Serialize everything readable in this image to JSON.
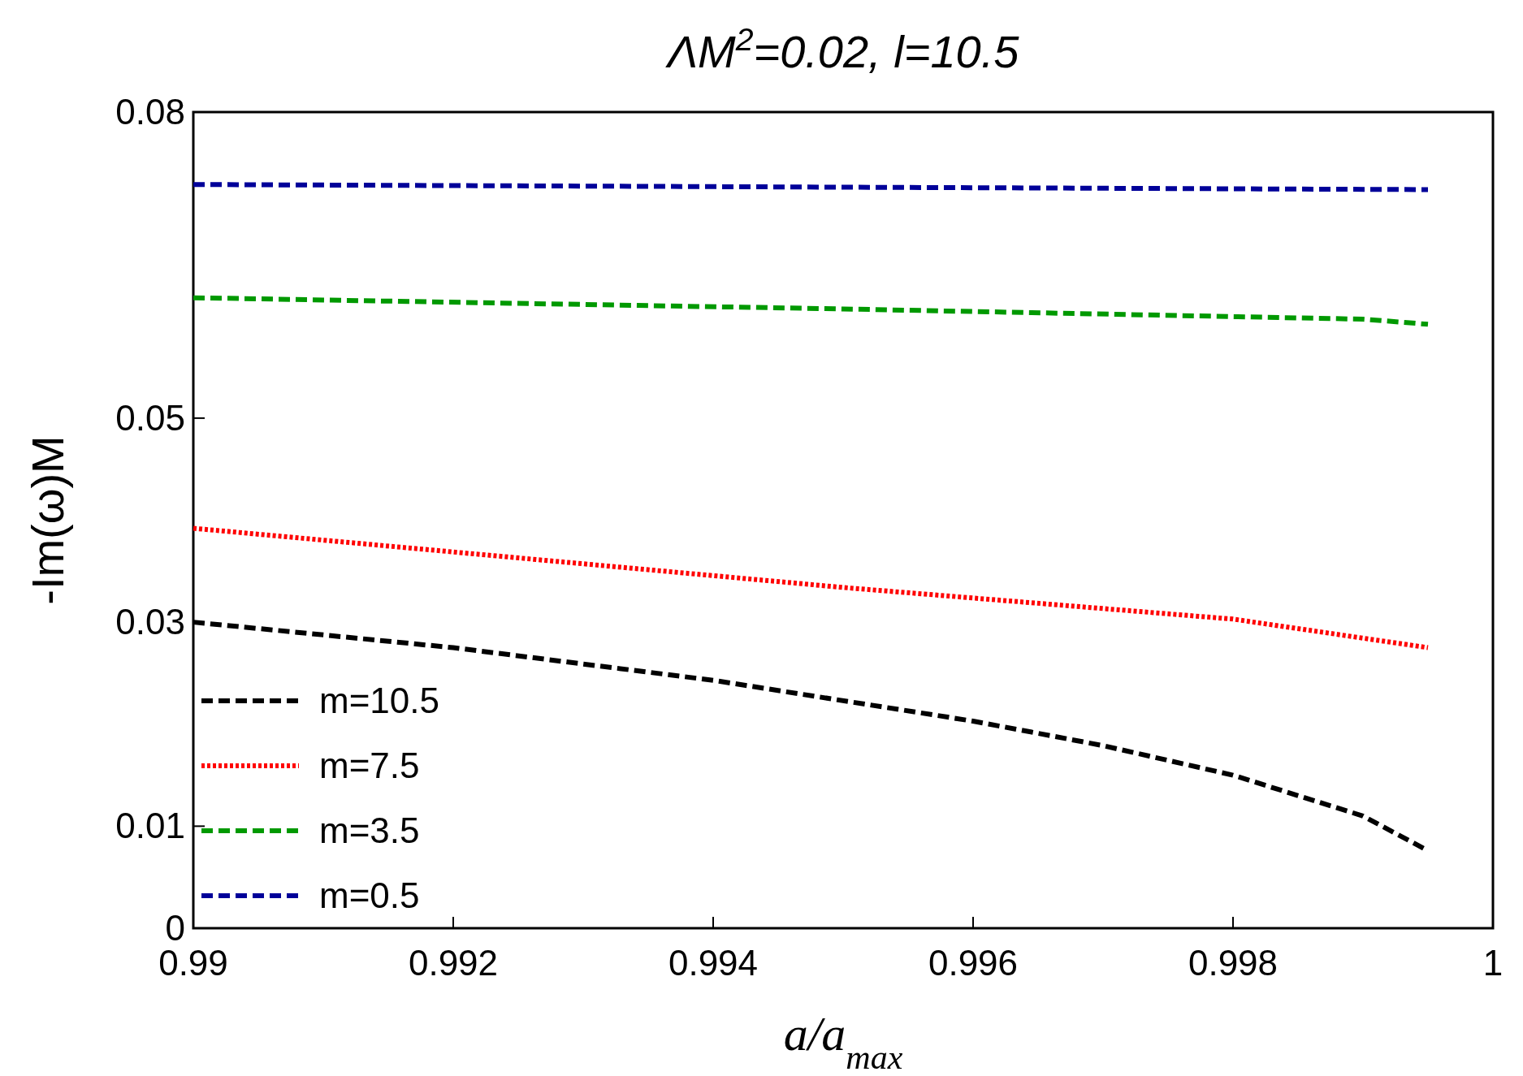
{
  "chart_data": {
    "type": "line",
    "title": "ΛM$^{2}$=0.02, l=10.5",
    "xlabel": "a/a$_{max}$",
    "ylabel": "-Im(ω)M",
    "xlim": [
      0.99,
      1
    ],
    "xticks": [
      0.99,
      0.992,
      0.994,
      0.996,
      0.998,
      1
    ],
    "ylim": [
      0,
      0.08
    ],
    "yticks": [
      0,
      0.01,
      0.03,
      0.05,
      0.08
    ],
    "grid": false,
    "legend": "bottom left",
    "marker": "none",
    "series": [
      {
        "name": "m=10.5",
        "color": "#000000",
        "line_style": "dashed",
        "x": [
          0.99,
          0.992,
          0.994,
          0.996,
          0.997,
          0.998,
          0.999,
          0.9995
        ],
        "values": [
          0.03,
          0.0275,
          0.0243,
          0.0203,
          0.0179,
          0.015,
          0.011,
          0.0076
        ]
      },
      {
        "name": "m=7.5",
        "color": "#ff0000",
        "line_style": "dotted",
        "x": [
          0.99,
          0.995,
          0.998,
          0.9995
        ],
        "values": [
          0.0392,
          0.0334,
          0.0303,
          0.0275
        ]
      },
      {
        "name": "m=3.5",
        "color": "#009900",
        "line_style": "dashed",
        "x": [
          0.99,
          0.995,
          0.999,
          0.9995
        ],
        "values": [
          0.0618,
          0.0607,
          0.0597,
          0.0592
        ]
      },
      {
        "name": "m=0.5",
        "color": "#000099",
        "line_style": "dashed",
        "x": [
          0.99,
          0.9995
        ],
        "values": [
          0.0729,
          0.0724
        ]
      }
    ]
  }
}
